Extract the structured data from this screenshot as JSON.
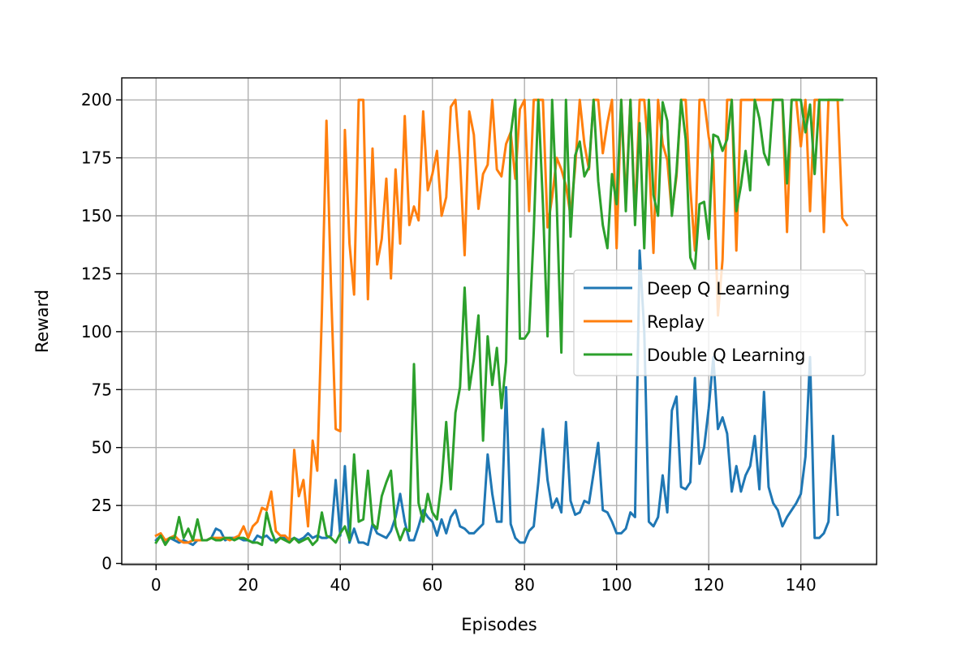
{
  "chart_data": {
    "type": "line",
    "xlabel": "Episodes",
    "ylabel": "Reward",
    "xlim": [
      -7.45,
      156.45
    ],
    "ylim": [
      -0.5,
      209.5
    ],
    "xticks": [
      0,
      20,
      40,
      60,
      80,
      100,
      120,
      140
    ],
    "yticks": [
      0,
      25,
      50,
      75,
      100,
      125,
      150,
      175,
      200
    ],
    "grid": true,
    "legend_placement": "center-right",
    "series": [
      {
        "name": "Deep Q Learning",
        "color": "#1f77b4",
        "values": [
          10,
          12,
          9,
          11,
          10,
          9,
          10,
          9,
          8,
          10,
          10,
          10,
          11,
          15,
          14,
          10,
          11,
          11,
          11,
          10,
          10,
          9,
          12,
          11,
          12,
          10,
          10,
          11,
          11,
          10,
          11,
          10,
          11,
          13,
          11,
          12,
          11,
          11,
          12,
          36,
          12,
          42,
          9,
          15,
          9,
          9,
          8,
          17,
          13,
          12,
          11,
          14,
          20,
          30,
          18,
          10,
          10,
          16,
          23,
          20,
          18,
          12,
          19,
          13,
          20,
          23,
          16,
          15,
          13,
          13,
          15,
          17,
          47,
          30,
          18,
          18,
          76,
          17,
          11,
          9,
          9,
          14,
          16,
          35,
          58,
          36,
          24,
          28,
          22,
          61,
          27,
          21,
          22,
          27,
          26,
          39,
          52,
          23,
          22,
          18,
          13,
          13,
          15,
          22,
          20,
          135,
          100,
          18,
          16,
          20,
          38,
          22,
          66,
          72,
          33,
          32,
          35,
          80,
          43,
          50,
          67,
          89,
          58,
          63,
          56,
          31,
          42,
          31,
          38,
          42,
          55,
          32,
          74,
          33,
          26,
          23,
          16,
          20,
          23,
          26,
          30,
          46,
          89,
          11,
          11,
          13,
          18,
          55,
          21
        ]
      },
      {
        "name": "Replay",
        "color": "#ff7f0e",
        "values": [
          12,
          13,
          10,
          11,
          12,
          10,
          9,
          9,
          10,
          10,
          10,
          10,
          11,
          11,
          11,
          11,
          10,
          11,
          12,
          16,
          11,
          16,
          18,
          24,
          23,
          31,
          14,
          12,
          12,
          10,
          49,
          29,
          36,
          16,
          53,
          40,
          108,
          191,
          118,
          58,
          57,
          187,
          138,
          116,
          200,
          200,
          114,
          179,
          129,
          140,
          166,
          123,
          170,
          138,
          193,
          146,
          154,
          148,
          195,
          161,
          168,
          178,
          150,
          158,
          197,
          200,
          174,
          133,
          195,
          185,
          153,
          168,
          172,
          200,
          170,
          167,
          181,
          186,
          166,
          196,
          200,
          152,
          200,
          200,
          200,
          145,
          158,
          175,
          170,
          163,
          150,
          171,
          200,
          181,
          170,
          200,
          200,
          177,
          190,
          200,
          136,
          200,
          156,
          200,
          150,
          200,
          200,
          176,
          134,
          200,
          181,
          174,
          151,
          167,
          200,
          200,
          162,
          135,
          200,
          200,
          184,
          174,
          107,
          131,
          200,
          200,
          135,
          200,
          200,
          200,
          200,
          200,
          200,
          200,
          200,
          200,
          200,
          143,
          200,
          200,
          180,
          200,
          152,
          200,
          200,
          143,
          200,
          200,
          200,
          149,
          146
        ]
      },
      {
        "name": "Double Q Learning",
        "color": "#2ca02c",
        "values": [
          9,
          12,
          8,
          11,
          11,
          20,
          11,
          15,
          10,
          19,
          10,
          10,
          11,
          10,
          10,
          11,
          11,
          10,
          11,
          11,
          10,
          9,
          9,
          8,
          22,
          14,
          9,
          11,
          10,
          9,
          11,
          9,
          10,
          11,
          8,
          10,
          22,
          12,
          11,
          9,
          13,
          16,
          10,
          47,
          18,
          19,
          40,
          17,
          15,
          29,
          35,
          40,
          16,
          10,
          15,
          14,
          86,
          26,
          18,
          30,
          22,
          19,
          35,
          61,
          32,
          65,
          76,
          119,
          75,
          88,
          107,
          53,
          98,
          77,
          93,
          67,
          87,
          185,
          200,
          97,
          97,
          100,
          143,
          200,
          155,
          98,
          200,
          155,
          91,
          200,
          141,
          176,
          182,
          167,
          171,
          200,
          165,
          146,
          136,
          168,
          155,
          200,
          152,
          200,
          146,
          190,
          136,
          200,
          159,
          150,
          199,
          191,
          150,
          169,
          200,
          183,
          132,
          127,
          155,
          156,
          140,
          185,
          184,
          178,
          183,
          200,
          152,
          163,
          178,
          161,
          200,
          192,
          177,
          172,
          200,
          200,
          200,
          164,
          200,
          200,
          200,
          186,
          198,
          168,
          200,
          200,
          200,
          200,
          200,
          200
        ]
      }
    ]
  }
}
